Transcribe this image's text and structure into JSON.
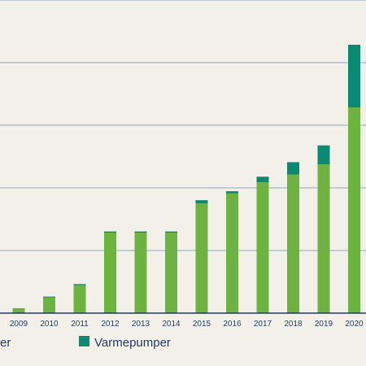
{
  "chart_data": {
    "type": "bar",
    "stacked": true,
    "categories": [
      "2009",
      "2010",
      "2011",
      "2012",
      "2013",
      "2014",
      "2015",
      "2016",
      "2017",
      "2018",
      "2019",
      "2020"
    ],
    "series": [
      {
        "name": "",
        "color": "#6db33f",
        "values": [
          4,
          14,
          25,
          72,
          72,
          72,
          98,
          107,
          117,
          124,
          133,
          184
        ]
      },
      {
        "name": "Varmepumper",
        "color": "#0a8a73",
        "values": [
          0.3,
          0.8,
          1,
          1,
          1,
          1,
          3,
          2,
          5,
          11,
          17,
          56
        ]
      }
    ],
    "ylim": [
      0,
      280
    ],
    "grid": true,
    "legend_position": "bottom",
    "legend_partial_text": "er"
  }
}
